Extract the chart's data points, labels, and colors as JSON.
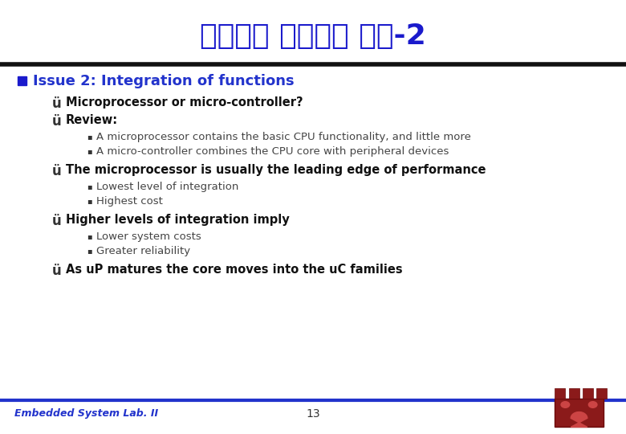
{
  "title": "임베디드 프로세서 선택-2",
  "title_color": "#1a1acc",
  "title_fontsize": 26,
  "bg_color": "#ffffff",
  "header_line_color": "#111111",
  "section_color": "#2233cc",
  "square_color": "#1a1acc",
  "footer_line_color": "#2233cc",
  "footer_text": "Embedded System Lab. II",
  "footer_page": "13",
  "footer_color": "#2233cc",
  "section": "Issue 2: Integration of functions",
  "section_fontsize": 13,
  "check_color": "#333333",
  "main_bold_color": "#111111",
  "sub_color": "#444444",
  "items": [
    {
      "text": "Microprocessor or micro-controller?",
      "bold": true,
      "sub": []
    },
    {
      "text": "Review:",
      "bold": true,
      "sub": [
        "A microprocessor contains the basic CPU functionality, and little more",
        "A micro-controller combines the CPU core with peripheral devices"
      ]
    },
    {
      "text": "The microprocessor is usually the leading edge of performance",
      "bold": true,
      "sub": [
        "Lowest level of integration",
        "Highest cost"
      ]
    },
    {
      "text": "Higher levels of integration imply",
      "bold": true,
      "sub": [
        "Lower system costs",
        "Greater reliability"
      ]
    },
    {
      "text": "As uP matures the core moves into the uC families",
      "bold": true,
      "sub": []
    }
  ]
}
